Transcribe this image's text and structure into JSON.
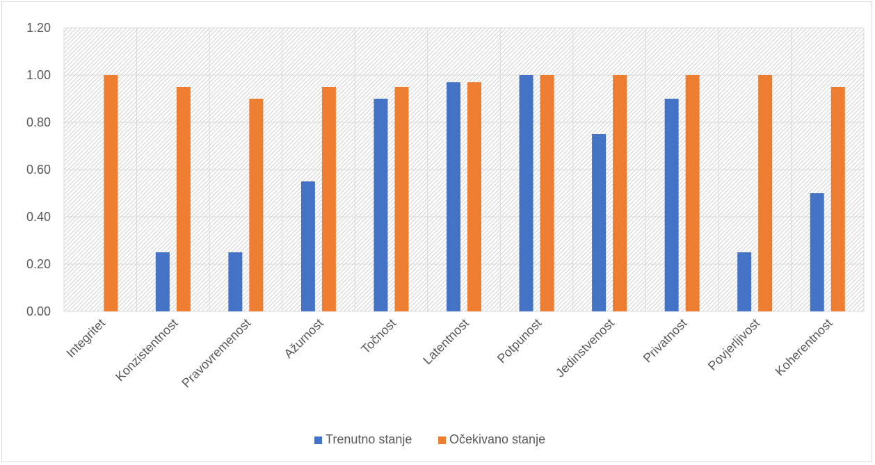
{
  "chart_data": {
    "type": "bar",
    "categories": [
      "Integritet",
      "Konzistentnost",
      "Pravovremenost",
      "Ažurnost",
      "Točnost",
      "Latentnost",
      "Potpunost",
      "Jedinstvenost",
      "Privatnost",
      "Povjerljivost",
      "Koherentnost"
    ],
    "series": [
      {
        "name": "Trenutno stanje",
        "color": "#4472c4",
        "values": [
          0,
          0.25,
          0.25,
          0.55,
          0.9,
          0.97,
          1.0,
          0.75,
          0.9,
          0.25,
          0.5
        ]
      },
      {
        "name": "Očekivano stanje",
        "color": "#ed7d31",
        "values": [
          1.0,
          0.95,
          0.9,
          0.95,
          0.95,
          0.97,
          1.0,
          1.0,
          1.0,
          1.0,
          0.95
        ]
      }
    ],
    "yticks": [
      "0.00",
      "0.20",
      "0.40",
      "0.60",
      "0.80",
      "1.00",
      "1.20"
    ],
    "ylim": [
      0,
      1.2
    ],
    "grid": true,
    "legend_position": "bottom",
    "title": "",
    "xlabel": "",
    "ylabel": ""
  }
}
